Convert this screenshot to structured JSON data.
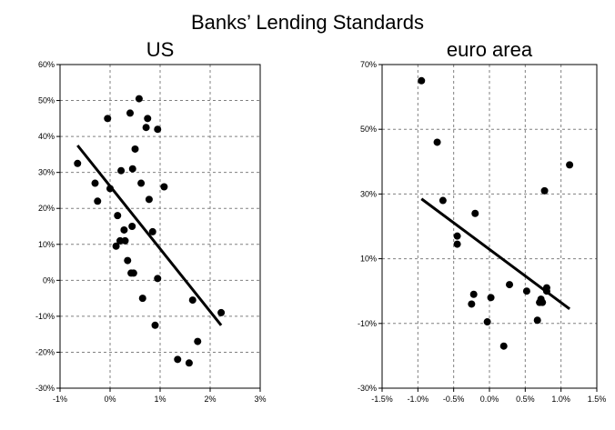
{
  "figure_title": "Banks’ Lending Standards",
  "chart_data": [
    {
      "type": "scatter",
      "title": "US",
      "xlabel": "",
      "ylabel": "",
      "xlim": [
        -1,
        3
      ],
      "ylim": [
        -30,
        60
      ],
      "x_ticks": [
        -1,
        0,
        1,
        2,
        3
      ],
      "y_ticks": [
        -30,
        -20,
        -10,
        0,
        10,
        20,
        30,
        40,
        50,
        60
      ],
      "x_tick_labels": [
        "-1%",
        "0%",
        "1%",
        "2%",
        "3%"
      ],
      "y_tick_labels": [
        "-30%",
        "-20%",
        "-10%",
        "0%",
        "10%",
        "20%",
        "30%",
        "40%",
        "50%",
        "60%"
      ],
      "grid": true,
      "points": [
        {
          "x": -0.65,
          "y": 32.5
        },
        {
          "x": -0.3,
          "y": 27
        },
        {
          "x": -0.25,
          "y": 22
        },
        {
          "x": -0.05,
          "y": 45
        },
        {
          "x": 0.0,
          "y": 25.5
        },
        {
          "x": 0.15,
          "y": 18
        },
        {
          "x": 0.12,
          "y": 9.5
        },
        {
          "x": 0.2,
          "y": 11
        },
        {
          "x": 0.22,
          "y": 30.5
        },
        {
          "x": 0.28,
          "y": 14
        },
        {
          "x": 0.3,
          "y": 11
        },
        {
          "x": 0.35,
          "y": 5.5
        },
        {
          "x": 0.4,
          "y": 46.5
        },
        {
          "x": 0.42,
          "y": 2
        },
        {
          "x": 0.44,
          "y": 15
        },
        {
          "x": 0.45,
          "y": 31
        },
        {
          "x": 0.47,
          "y": 2
        },
        {
          "x": 0.5,
          "y": 36.5
        },
        {
          "x": 0.58,
          "y": 50.5
        },
        {
          "x": 0.62,
          "y": 27
        },
        {
          "x": 0.65,
          "y": -5
        },
        {
          "x": 0.72,
          "y": 42.5
        },
        {
          "x": 0.75,
          "y": 45
        },
        {
          "x": 0.78,
          "y": 22.5
        },
        {
          "x": 0.85,
          "y": 13.5
        },
        {
          "x": 0.9,
          "y": -12.5
        },
        {
          "x": 0.95,
          "y": 42
        },
        {
          "x": 0.95,
          "y": 0.5
        },
        {
          "x": 1.08,
          "y": 26
        },
        {
          "x": 1.35,
          "y": -22
        },
        {
          "x": 1.58,
          "y": -23
        },
        {
          "x": 1.65,
          "y": -5.5
        },
        {
          "x": 1.75,
          "y": -17
        },
        {
          "x": 2.22,
          "y": -9
        }
      ],
      "trendline": {
        "x": [
          -0.65,
          2.22
        ],
        "y": [
          37.5,
          -12.5
        ]
      }
    },
    {
      "type": "scatter",
      "title": "euro area",
      "xlabel": "",
      "ylabel": "",
      "xlim": [
        -1.5,
        1.5
      ],
      "ylim": [
        -30,
        70
      ],
      "x_ticks": [
        -1.5,
        -1.0,
        -0.5,
        0.0,
        0.5,
        1.0,
        1.5
      ],
      "y_ticks": [
        -30,
        -10,
        10,
        30,
        50,
        70
      ],
      "x_tick_labels": [
        "-1.5%",
        "-1.0%",
        "-0.5%",
        "0.0%",
        "0.5%",
        "1.0%",
        "1.5%"
      ],
      "y_tick_labels": [
        "-30%",
        "-10%",
        "10%",
        "30%",
        "50%",
        "70%"
      ],
      "grid": true,
      "points": [
        {
          "x": -0.95,
          "y": 65
        },
        {
          "x": -0.73,
          "y": 46
        },
        {
          "x": -0.65,
          "y": 28
        },
        {
          "x": -0.45,
          "y": 17
        },
        {
          "x": -0.45,
          "y": 14.5
        },
        {
          "x": -0.25,
          "y": -4
        },
        {
          "x": -0.22,
          "y": -1
        },
        {
          "x": -0.2,
          "y": 24
        },
        {
          "x": -0.03,
          "y": -9.5
        },
        {
          "x": 0.02,
          "y": -2
        },
        {
          "x": 0.2,
          "y": -17
        },
        {
          "x": 0.28,
          "y": 2
        },
        {
          "x": 0.52,
          "y": 0
        },
        {
          "x": 0.67,
          "y": -9
        },
        {
          "x": 0.7,
          "y": -3.5
        },
        {
          "x": 0.72,
          "y": -2.5
        },
        {
          "x": 0.74,
          "y": -3.5
        },
        {
          "x": 0.77,
          "y": 31
        },
        {
          "x": 0.8,
          "y": 1
        },
        {
          "x": 0.8,
          "y": 0
        },
        {
          "x": 1.12,
          "y": 39
        }
      ],
      "trendline": {
        "x": [
          -0.95,
          1.12
        ],
        "y": [
          28.5,
          -5.5
        ]
      }
    }
  ]
}
